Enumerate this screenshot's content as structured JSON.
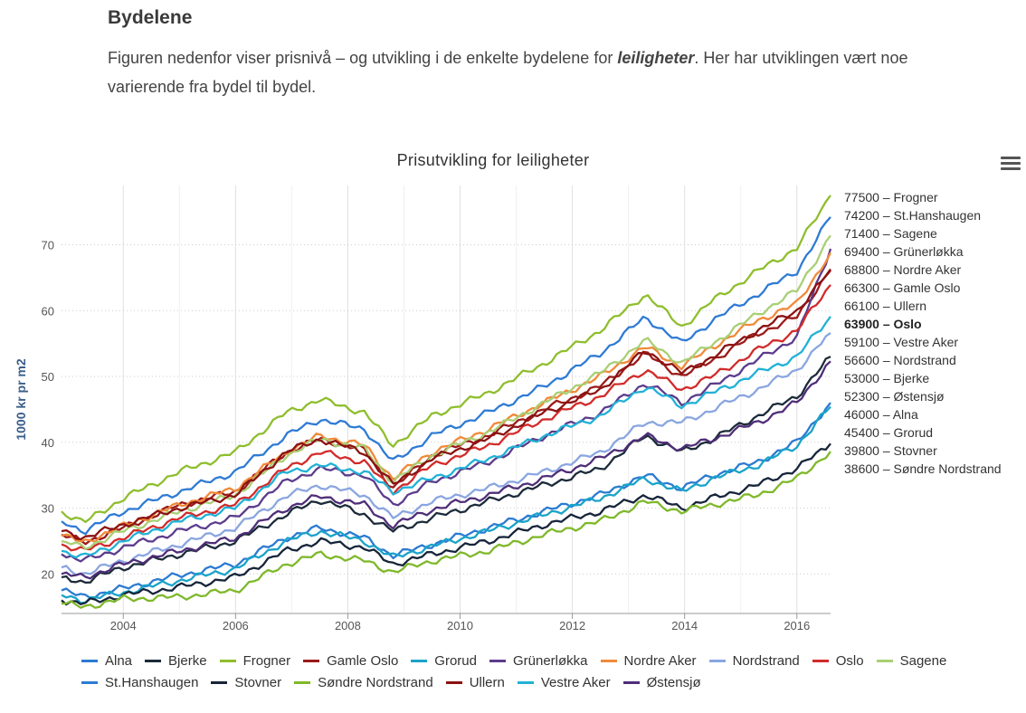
{
  "article": {
    "heading": "Bydelene",
    "intro_before": "Figuren nedenfor viser prisnivå – og utvikling i de enkelte bydelene for ",
    "intro_emphasis": "leiligheter",
    "intro_after": ". Her har utviklingen vært noe varierende fra bydel til bydel."
  },
  "menu": {
    "icon": "hamburger-menu-icon"
  },
  "chart_data": {
    "type": "line",
    "title": "Prisutvikling for leiligheter",
    "ylabel": "1000 kr pr m2",
    "xlabel": "",
    "xlim": [
      2002.9,
      2016.6
    ],
    "ylim": [
      14,
      79
    ],
    "yticks": [
      20,
      30,
      40,
      50,
      60,
      70
    ],
    "xticks": [
      2004,
      2006,
      2008,
      2010,
      2012,
      2014,
      2016
    ],
    "grid": {
      "y": "dotted",
      "x": "vertical-bands"
    },
    "legend": "bottom",
    "x_knots": [
      2002.9,
      2003.3,
      2004.0,
      2005.0,
      2006.0,
      2006.9,
      2007.5,
      2008.3,
      2008.8,
      2009.5,
      2010.5,
      2011.5,
      2012.5,
      2013.3,
      2013.95,
      2014.5,
      2015.3,
      2016.0,
      2016.6
    ],
    "series": [
      {
        "name": "Alna",
        "color": "#2b7bd1",
        "end_value": 46000,
        "values": [
          17.5,
          16.5,
          17.8,
          19.8,
          21.5,
          25.5,
          27,
          25.5,
          22.8,
          24.5,
          27,
          29.5,
          32,
          35,
          33,
          35,
          37,
          40,
          46
        ]
      },
      {
        "name": "Bjerke",
        "color": "#1c2b3a",
        "end_value": 53000,
        "values": [
          19.5,
          18.8,
          21,
          23,
          25,
          29,
          31.3,
          29,
          26.5,
          28.5,
          31,
          33.5,
          36,
          41,
          38.5,
          40.5,
          44,
          47,
          53
        ]
      },
      {
        "name": "Frogner",
        "color": "#8fbe2e",
        "end_value": 77500,
        "values": [
          29.5,
          27.8,
          31.5,
          35.5,
          38.5,
          44.5,
          46.5,
          44.5,
          39.5,
          44,
          47.5,
          52,
          57,
          62.5,
          57.5,
          61.5,
          66,
          69.5,
          77.5
        ]
      },
      {
        "name": "Gamle Oslo",
        "color": "#9b1a1a",
        "end_value": 66300,
        "values": [
          26,
          24.8,
          27,
          30.5,
          32.5,
          38.5,
          40.5,
          38.8,
          33,
          38,
          41,
          45,
          48.5,
          53.5,
          50,
          52.5,
          56.5,
          59,
          66.3
        ]
      },
      {
        "name": "Grorud",
        "color": "#1aa3c9",
        "end_value": 45400,
        "values": [
          16.8,
          16,
          17.2,
          19,
          20.8,
          25,
          26.5,
          25,
          22.5,
          24.2,
          26.5,
          29,
          31.5,
          34.5,
          32.5,
          34.5,
          36.5,
          39.5,
          45.4
        ]
      },
      {
        "name": "Grünerløkka",
        "color": "#5c3c8c",
        "end_value": 69400,
        "values": [
          23,
          22,
          24,
          26.5,
          28.5,
          34,
          36,
          35,
          30.5,
          34,
          37,
          41,
          44.5,
          49,
          46,
          48.5,
          52.5,
          56,
          69.4
        ]
      },
      {
        "name": "Nordre Aker",
        "color": "#f08a3a",
        "end_value": 68800,
        "values": [
          25.8,
          24.8,
          27.3,
          30.5,
          33,
          38.5,
          41,
          39.5,
          34.5,
          38.5,
          42,
          46,
          50,
          54.5,
          51.5,
          54.5,
          58.5,
          61,
          68.8
        ]
      },
      {
        "name": "Nordstrand",
        "color": "#8aa6e0",
        "end_value": 56600,
        "values": [
          21,
          20,
          22,
          24.5,
          27,
          31.8,
          33.5,
          32,
          28.5,
          31,
          33,
          35.5,
          38.5,
          43,
          43,
          45,
          48,
          51,
          56.6
        ]
      },
      {
        "name": "Oslo",
        "color": "#d22b2b",
        "end_value": 63900,
        "values": [
          24.5,
          23.5,
          25.5,
          28.5,
          30.5,
          36,
          38.5,
          37,
          32.5,
          36.5,
          39.5,
          43.5,
          47,
          51,
          48,
          50,
          54,
          57,
          63.9
        ]
      },
      {
        "name": "Sagene",
        "color": "#a9cf74",
        "end_value": 71400,
        "values": [
          25,
          24,
          26.5,
          29.5,
          32,
          38,
          40.5,
          39,
          34,
          38,
          41.5,
          46,
          50.5,
          55.5,
          52,
          55,
          59.5,
          63,
          71.4
        ]
      },
      {
        "name": "St.Hanshaugen",
        "color": "#2f7bd4",
        "end_value": 74200,
        "values": [
          28,
          26.5,
          29.5,
          32.5,
          35.5,
          41,
          43.5,
          42,
          37,
          41,
          44.5,
          48.5,
          53.5,
          59,
          55,
          58.5,
          62.5,
          66,
          74.2
        ]
      },
      {
        "name": "Stovner",
        "color": "#17253a",
        "end_value": 39800,
        "values": [
          16,
          15.5,
          16.8,
          18,
          19.5,
          23.5,
          25,
          24,
          21.5,
          23,
          25,
          27.5,
          29.5,
          32,
          30,
          31.5,
          33.5,
          36,
          39.8
        ]
      },
      {
        "name": "Søndre Nordstrand",
        "color": "#7fb82a",
        "end_value": 38600,
        "values": [
          15.5,
          15,
          16.2,
          16.5,
          17.5,
          21.5,
          23,
          22,
          20.3,
          22,
          23.5,
          26,
          28,
          31,
          29.5,
          30.5,
          32,
          34.5,
          38.6
        ]
      },
      {
        "name": "Ullern",
        "color": "#8c1212",
        "end_value": 66100,
        "values": [
          26.5,
          25.5,
          27.5,
          30,
          32,
          38.5,
          40.5,
          38.5,
          33.5,
          37.5,
          40.5,
          44.5,
          48,
          54,
          50.5,
          53,
          57,
          60,
          66.1
        ]
      },
      {
        "name": "Vestre Aker",
        "color": "#22b1d6",
        "end_value": 59100,
        "values": [
          23.5,
          22.5,
          25,
          28,
          30,
          35.5,
          36.5,
          35.5,
          32.5,
          34.5,
          37.5,
          41,
          44,
          48.5,
          45.5,
          47.5,
          50.5,
          53,
          59.1
        ]
      },
      {
        "name": "Østensjø",
        "color": "#4f2e78",
        "end_value": 52300,
        "values": [
          20,
          19.5,
          21.5,
          23.5,
          25.5,
          30,
          31.8,
          30.5,
          27.3,
          29.8,
          32,
          34.5,
          37.5,
          41,
          39,
          40.5,
          43,
          46,
          52.3
        ]
      }
    ],
    "end_labels": [
      {
        "value": "77500",
        "name": "Frogner",
        "bold": false
      },
      {
        "value": "74200",
        "name": "St.Hanshaugen",
        "bold": false
      },
      {
        "value": "71400",
        "name": "Sagene",
        "bold": false
      },
      {
        "value": "69400",
        "name": "Grünerløkka",
        "bold": false
      },
      {
        "value": "68800",
        "name": "Nordre Aker",
        "bold": false
      },
      {
        "value": "66300",
        "name": "Gamle Oslo",
        "bold": false
      },
      {
        "value": "66100",
        "name": "Ullern",
        "bold": false
      },
      {
        "value": "63900",
        "name": "Oslo",
        "bold": true
      },
      {
        "value": "59100",
        "name": "Vestre Aker",
        "bold": false
      },
      {
        "value": "56600",
        "name": "Nordstrand",
        "bold": false
      },
      {
        "value": "53000",
        "name": "Bjerke",
        "bold": false
      },
      {
        "value": "52300",
        "name": "Østensjø",
        "bold": false
      },
      {
        "value": "46000",
        "name": "Alna",
        "bold": false
      },
      {
        "value": "45400",
        "name": "Grorud",
        "bold": false
      },
      {
        "value": "39800",
        "name": "Stovner",
        "bold": false
      },
      {
        "value": "38600",
        "name": "Søndre Nordstrand",
        "bold": false
      }
    ],
    "legend_rows": [
      [
        "Alna",
        "Bjerke",
        "Frogner",
        "Gamle Oslo",
        "Grorud",
        "Grünerløkka",
        "Nordre Aker",
        "Nordstrand",
        "Oslo",
        "Sagene"
      ],
      [
        "St.Hanshaugen",
        "Stovner",
        "Søndre Nordstrand",
        "Ullern",
        "Vestre Aker",
        "Østensjø"
      ]
    ]
  }
}
